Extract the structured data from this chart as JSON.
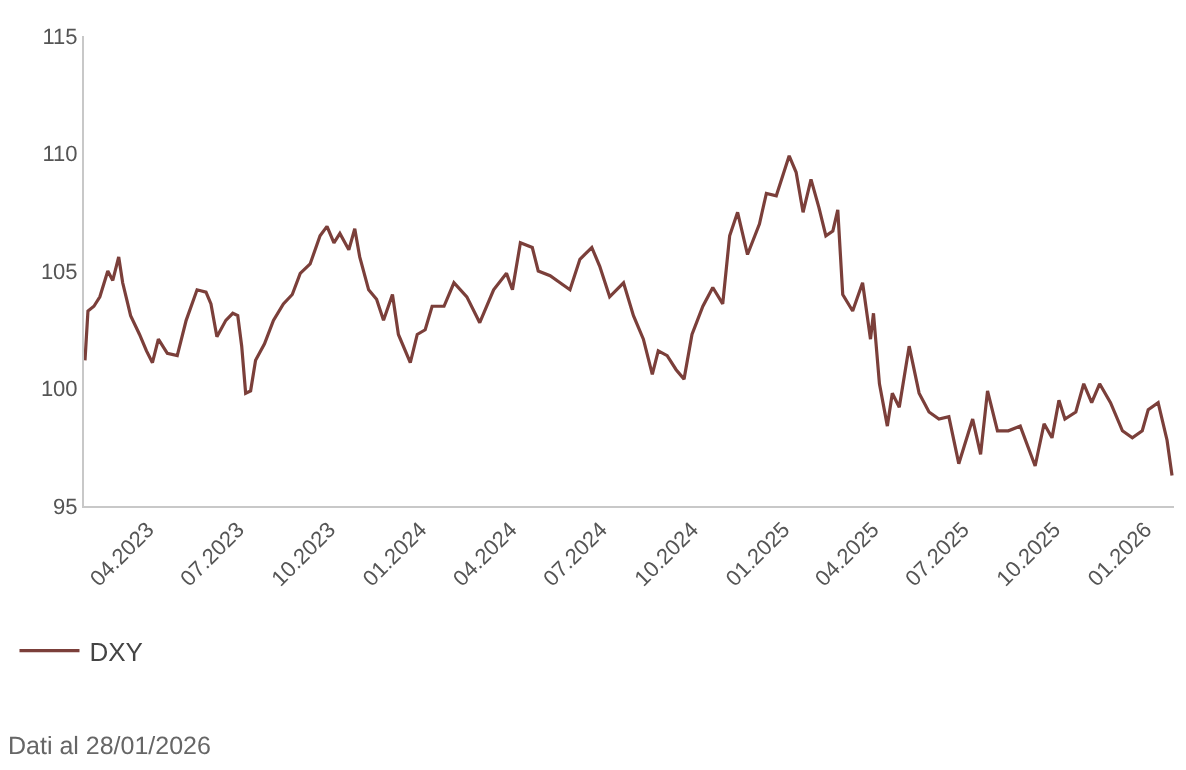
{
  "chart_data": {
    "type": "line",
    "x": [
      "2023-01-28",
      "2023-01-31",
      "2023-02-06",
      "2023-02-12",
      "2023-02-20",
      "2023-02-25",
      "2023-03-03",
      "2023-03-07",
      "2023-03-11",
      "2023-03-15",
      "2023-03-24",
      "2023-03-31",
      "2023-04-06",
      "2023-04-12",
      "2023-04-21",
      "2023-05-01",
      "2023-05-10",
      "2023-05-21",
      "2023-05-30",
      "2023-06-04",
      "2023-06-10",
      "2023-06-19",
      "2023-06-26",
      "2023-07-01",
      "2023-07-05",
      "2023-07-09",
      "2023-07-14",
      "2023-07-19",
      "2023-07-28",
      "2023-08-06",
      "2023-08-16",
      "2023-08-25",
      "2023-09-02",
      "2023-09-12",
      "2023-09-22",
      "2023-09-29",
      "2023-10-06",
      "2023-10-12",
      "2023-10-21",
      "2023-10-27",
      "2023-11-01",
      "2023-11-10",
      "2023-11-18",
      "2023-11-25",
      "2023-12-04",
      "2023-12-10",
      "2023-12-22",
      "2023-12-29",
      "2024-01-06",
      "2024-01-13",
      "2024-01-25",
      "2024-02-04",
      "2024-02-17",
      "2024-03-01",
      "2024-03-15",
      "2024-03-28",
      "2024-04-03",
      "2024-04-11",
      "2024-04-23",
      "2024-04-29",
      "2024-05-11",
      "2024-05-21",
      "2024-05-31",
      "2024-06-10",
      "2024-06-22",
      "2024-06-30",
      "2024-07-10",
      "2024-07-24",
      "2024-08-03",
      "2024-08-13",
      "2024-08-22",
      "2024-08-28",
      "2024-09-06",
      "2024-09-15",
      "2024-09-23",
      "2024-10-01",
      "2024-10-12",
      "2024-10-22",
      "2024-11-01",
      "2024-11-08",
      "2024-11-16",
      "2024-11-26",
      "2024-12-08",
      "2024-12-15",
      "2024-12-25",
      "2025-01-07",
      "2025-01-14",
      "2025-01-21",
      "2025-01-29",
      "2025-02-06",
      "2025-02-13",
      "2025-02-20",
      "2025-02-25",
      "2025-03-02",
      "2025-03-12",
      "2025-03-22",
      "2025-03-30",
      "2025-04-02",
      "2025-04-08",
      "2025-04-16",
      "2025-04-21",
      "2025-04-28",
      "2025-05-08",
      "2025-05-18",
      "2025-05-28",
      "2025-06-07",
      "2025-06-17",
      "2025-06-27",
      "2025-07-11",
      "2025-07-19",
      "2025-07-26",
      "2025-08-05",
      "2025-08-16",
      "2025-08-28",
      "2025-09-12",
      "2025-09-21",
      "2025-09-29",
      "2025-10-06",
      "2025-10-12",
      "2025-10-23",
      "2025-10-31",
      "2025-11-08",
      "2025-11-16",
      "2025-11-27",
      "2025-12-09",
      "2025-12-19",
      "2025-12-29",
      "2026-01-04",
      "2026-01-14",
      "2026-01-23",
      "2026-01-28"
    ],
    "series": [
      {
        "name": "DXY",
        "color": "#7b3f3a",
        "values": [
          101.2,
          103.3,
          103.5,
          103.9,
          105.0,
          104.6,
          105.6,
          104.5,
          103.8,
          103.1,
          102.3,
          101.6,
          101.1,
          102.1,
          101.5,
          101.4,
          102.9,
          104.2,
          104.1,
          103.6,
          102.2,
          102.9,
          103.2,
          103.1,
          101.8,
          99.8,
          99.9,
          101.2,
          101.9,
          102.9,
          103.6,
          104.0,
          104.9,
          105.3,
          106.5,
          106.9,
          106.2,
          106.6,
          105.9,
          106.8,
          105.6,
          104.2,
          103.8,
          102.9,
          104.0,
          102.3,
          101.1,
          102.3,
          102.5,
          103.5,
          103.5,
          104.5,
          103.9,
          102.8,
          104.2,
          104.9,
          104.2,
          106.2,
          106.0,
          105.0,
          104.8,
          104.5,
          104.2,
          105.5,
          106.0,
          105.2,
          103.9,
          104.5,
          103.1,
          102.1,
          100.6,
          101.6,
          101.4,
          100.8,
          100.4,
          102.3,
          103.5,
          104.3,
          103.6,
          106.5,
          107.5,
          105.7,
          107.0,
          108.3,
          108.2,
          109.9,
          109.2,
          107.5,
          108.9,
          107.7,
          106.5,
          106.7,
          107.6,
          104.0,
          103.3,
          104.5,
          102.1,
          103.2,
          100.2,
          98.4,
          99.8,
          99.2,
          101.8,
          99.8,
          99.0,
          98.7,
          98.8,
          96.8,
          98.7,
          97.2,
          99.9,
          98.2,
          98.2,
          98.4,
          96.7,
          98.5,
          97.9,
          99.5,
          98.7,
          99.0,
          100.2,
          99.4,
          100.2,
          99.4,
          98.2,
          97.9,
          98.2,
          99.1,
          99.4,
          97.8,
          96.3
        ]
      }
    ],
    "xlim": [
      "2023-01-27",
      "2026-01-30"
    ],
    "xticks": [
      {
        "value": "2023-04-01",
        "label": "04.2023"
      },
      {
        "value": "2023-07-01",
        "label": "07.2023"
      },
      {
        "value": "2023-10-01",
        "label": "10.2023"
      },
      {
        "value": "2024-01-01",
        "label": "01.2024"
      },
      {
        "value": "2024-04-01",
        "label": "04.2024"
      },
      {
        "value": "2024-07-01",
        "label": "07.2024"
      },
      {
        "value": "2024-10-01",
        "label": "10.2024"
      },
      {
        "value": "2025-01-01",
        "label": "01.2025"
      },
      {
        "value": "2025-04-01",
        "label": "04.2025"
      },
      {
        "value": "2025-07-01",
        "label": "07.2025"
      },
      {
        "value": "2025-10-01",
        "label": "10.2025"
      },
      {
        "value": "2026-01-01",
        "label": "01.2026"
      }
    ],
    "ylim": [
      95,
      115
    ],
    "yticks": [
      95,
      100,
      105,
      110,
      115
    ],
    "grid": false,
    "legend": "bottom left",
    "marker": "none",
    "line_style": "solid",
    "annotations": [
      "Dati al 28/01/2026"
    ]
  }
}
